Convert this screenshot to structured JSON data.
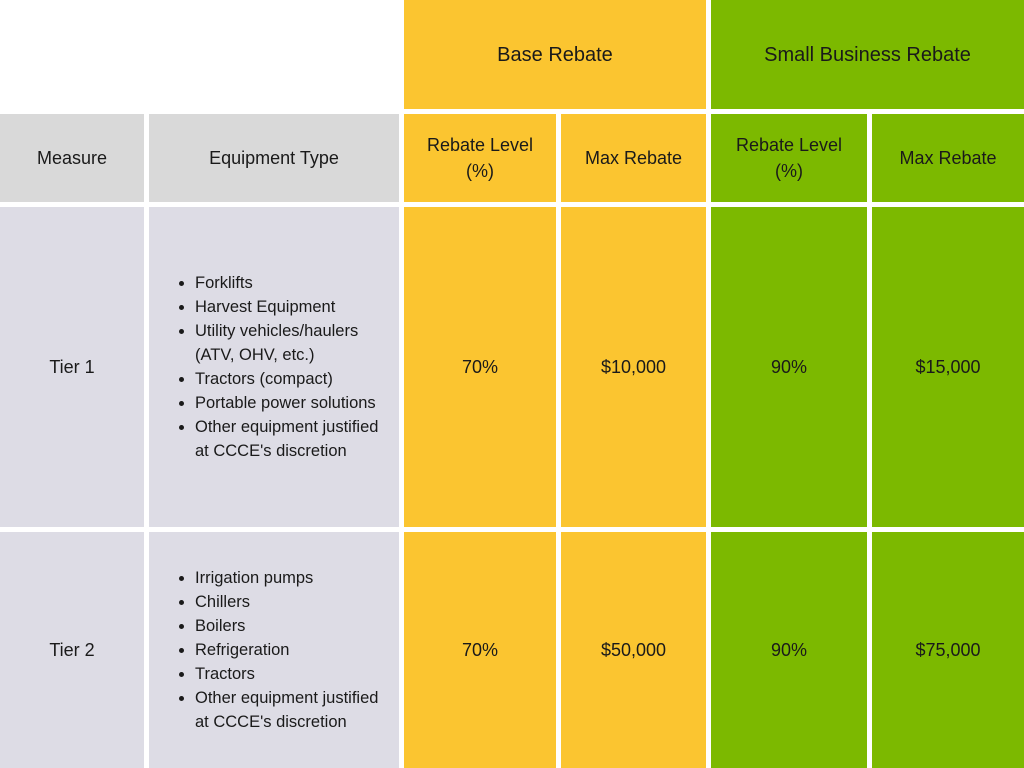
{
  "group_headers": {
    "base": "Base Rebate",
    "small_business": "Small Business Rebate"
  },
  "column_headers": {
    "measure": "Measure",
    "equipment_type": "Equipment Type",
    "base_rebate_level": "Rebate Level (%)",
    "base_max_rebate": "Max Rebate",
    "sb_rebate_level": "Rebate Level (%)",
    "sb_max_rebate": "Max Rebate"
  },
  "rows": [
    {
      "measure": "Tier 1",
      "equipment": [
        "Forklifts",
        "Harvest Equipment",
        "Utility vehicles/haulers (ATV, OHV, etc.)",
        "Tractors (compact)",
        "Portable power solutions",
        "Other equipment justified at CCCE's discretion"
      ],
      "base_rebate_level": "70%",
      "base_max_rebate": "$10,000",
      "sb_rebate_level": "90%",
      "sb_max_rebate": "$15,000"
    },
    {
      "measure": "Tier 2",
      "equipment": [
        "Irrigation pumps",
        "Chillers",
        "Boilers",
        "Refrigeration",
        "Tractors",
        "Other equipment justified at CCCE's discretion"
      ],
      "base_rebate_level": "70%",
      "base_max_rebate": "$50,000",
      "sb_rebate_level": "90%",
      "sb_max_rebate": "$75,000"
    }
  ],
  "colors": {
    "base": "#fbc530",
    "small_business": "#7cb900",
    "header_gray": "#d9d9d9",
    "body_lavender": "#dddce5"
  }
}
